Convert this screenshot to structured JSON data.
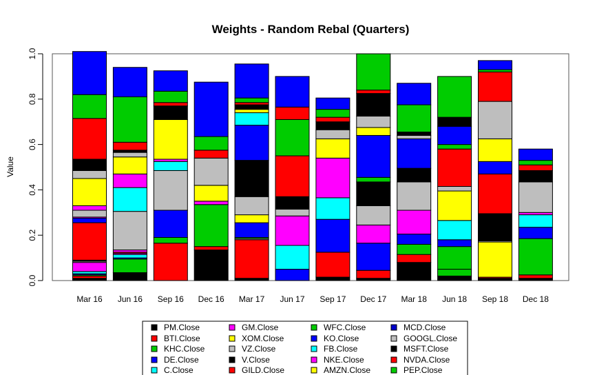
{
  "chart_data": {
    "type": "bar",
    "stacked": true,
    "title": "Weights - Random Rebal (Quarters)",
    "xlabel": "",
    "ylabel": "Value",
    "ylim": [
      0,
      1
    ],
    "yticks": [
      "0.0",
      "0.2",
      "0.4",
      "0.6",
      "0.8",
      "1.0"
    ],
    "grid": false,
    "legend_position": "bottom",
    "categories": [
      "Mar 16",
      "Jun 16",
      "Sep 16",
      "Dec 16",
      "Mar 17",
      "Jun 17",
      "Sep 17",
      "Dec 17",
      "Mar 18",
      "Jun 18",
      "Sep 18",
      "Dec 18"
    ],
    "series": [
      {
        "name": "PM.Close",
        "color": "#000000",
        "values": [
          0.01,
          0.035,
          0.0,
          0.135,
          0.01,
          0.0,
          0.015,
          0.01,
          0.08,
          0.02,
          0.01,
          0.01
        ]
      },
      {
        "name": "BTI.Close",
        "color": "#FF0000",
        "values": [
          0.01,
          0.0,
          0.165,
          0.015,
          0.17,
          0.0,
          0.11,
          0.035,
          0.035,
          0.0,
          0.005,
          0.015
        ]
      },
      {
        "name": "KHC.Close",
        "color": "#00CC00",
        "values": [
          0.005,
          0.06,
          0.0,
          0.0,
          0.0,
          0.0,
          0.0,
          0.0,
          0.0,
          0.03,
          0.0,
          0.0
        ]
      },
      {
        "name": "DE.Close",
        "color": "#0000FF",
        "values": [
          0.005,
          0.005,
          0.0,
          0.0,
          0.0,
          0.05,
          0.0,
          0.12,
          0.0,
          0.0,
          0.0,
          0.0
        ]
      },
      {
        "name": "C.Close",
        "color": "#00FFFF",
        "values": [
          0.01,
          0.015,
          0.0,
          0.0,
          0.0,
          0.105,
          0.0,
          0.0,
          0.0,
          0.0,
          0.0,
          0.0
        ]
      },
      {
        "name": "GM.Close",
        "color": "#FF00FF",
        "values": [
          0.04,
          0.005,
          0.0,
          0.0,
          0.0,
          0.0,
          0.0,
          0.0,
          0.0,
          0.0,
          0.0,
          0.0
        ]
      },
      {
        "name": "XOM.Close",
        "color": "#FFFF00",
        "values": [
          0.0,
          0.0,
          0.0,
          0.0,
          0.0,
          0.0,
          0.0,
          0.0,
          0.0,
          0.0,
          0.155,
          0.0
        ]
      },
      {
        "name": "VZ.Close",
        "color": "#BEBEBE",
        "values": [
          0.005,
          0.0,
          0.0,
          0.0,
          0.005,
          0.0,
          0.0,
          0.0,
          0.0,
          0.0,
          0.005,
          0.0
        ]
      },
      {
        "name": "V.Close",
        "color": "#000000",
        "values": [
          0.005,
          0.0,
          0.0,
          0.0,
          0.0,
          0.0,
          0.0,
          0.0,
          0.0,
          0.0,
          0.01,
          0.0
        ]
      },
      {
        "name": "GILD.Close",
        "color": "#FF0000",
        "values": [
          0.165,
          0.005,
          0.0,
          0.0,
          0.0,
          0.0,
          0.0,
          0.0,
          0.0,
          0.0,
          0.0,
          0.0
        ]
      },
      {
        "name": "WFC.Close",
        "color": "#00CC00",
        "values": [
          0.0,
          0.0,
          0.025,
          0.185,
          0.005,
          0.0,
          0.0,
          0.0,
          0.045,
          0.1,
          0.0,
          0.16
        ]
      },
      {
        "name": "KO.Close",
        "color": "#0000FF",
        "values": [
          0.02,
          0.0,
          0.12,
          0.0,
          0.065,
          0.0,
          0.145,
          0.0,
          0.045,
          0.03,
          0.0,
          0.05
        ]
      },
      {
        "name": "FB.Close",
        "color": "#00FFFF",
        "values": [
          0.0,
          0.0,
          0.0,
          0.0,
          0.0,
          0.0,
          0.0,
          0.0,
          0.0,
          0.085,
          0.0,
          0.055
        ]
      },
      {
        "name": "NKE.Close",
        "color": "#FF00FF",
        "values": [
          0.005,
          0.01,
          0.0,
          0.0,
          0.0,
          0.13,
          0.0,
          0.08,
          0.105,
          0.0,
          0.0,
          0.01
        ]
      },
      {
        "name": "AMZN.Close",
        "color": "#FFFF00",
        "values": [
          0.0,
          0.0,
          0.0,
          0.0,
          0.035,
          0.0,
          0.0,
          0.0,
          0.0,
          0.13,
          0.0,
          0.0
        ]
      },
      {
        "name": "MCD.Close",
        "color": "#0000CC",
        "values": [
          0.0,
          0.0,
          0.0,
          0.0,
          0.0,
          0.0,
          0.0,
          0.0,
          0.0,
          0.0,
          0.0,
          0.0
        ]
      },
      {
        "name": "GOOGL.Close",
        "color": "#BEBEBE",
        "values": [
          0.03,
          0.17,
          0.175,
          0.0,
          0.08,
          0.03,
          0.0,
          0.085,
          0.125,
          0.02,
          0.0,
          0.135
        ]
      },
      {
        "name": "MSFT.Close",
        "color": "#000000",
        "values": [
          0.0,
          0.0,
          0.0,
          0.0,
          0.16,
          0.055,
          0.0,
          0.105,
          0.06,
          0.0,
          0.11,
          0.05
        ]
      },
      {
        "name": "NVDA.Close",
        "color": "#FF0000",
        "values": [
          0.0,
          0.0,
          0.0,
          0.0,
          0.0,
          0.18,
          0.0,
          0.0,
          0.0,
          0.165,
          0.175,
          0.025
        ]
      },
      {
        "name": "PEP.Close",
        "color": "#00CC00",
        "values": [
          0.0,
          0.0,
          0.0,
          0.0,
          0.0,
          0.16,
          0.0,
          0.02,
          0.0,
          0.02,
          0.0,
          0.0
        ]
      },
      {
        "name": "MCD.Close",
        "color": "#0000FF",
        "values": [
          0.0,
          0.0,
          0.0,
          0.0,
          0.155,
          0.0,
          0.0,
          0.185,
          0.13,
          0.08,
          0.055,
          0.0
        ]
      },
      {
        "name": "PM.Close",
        "color": "#00FFFF",
        "values": [
          0.0,
          0.105,
          0.04,
          0.0,
          0.055,
          0.0,
          0.095,
          0.0,
          0.0,
          0.0,
          0.0,
          0.0
        ]
      },
      {
        "name": "BTI.Close",
        "color": "#FF00FF",
        "values": [
          0.02,
          0.06,
          0.01,
          0.015,
          0.0,
          0.0,
          0.175,
          0.0,
          0.0,
          0.0,
          0.0,
          0.0
        ]
      },
      {
        "name": "KHC.Close",
        "color": "#FFFF00",
        "values": [
          0.12,
          0.075,
          0.175,
          0.07,
          0.015,
          0.0,
          0.085,
          0.035,
          0.0,
          0.0,
          0.1,
          0.0
        ]
      },
      {
        "name": "DE.Close",
        "color": "#BEBEBE",
        "values": [
          0.035,
          0.02,
          0.0,
          0.12,
          0.0,
          0.0,
          0.04,
          0.05,
          0.015,
          0.0,
          0.165,
          0.0
        ]
      },
      {
        "name": "C.Close",
        "color": "#000000",
        "values": [
          0.05,
          0.01,
          0.06,
          0.0,
          0.02,
          0.0,
          0.035,
          0.1,
          0.015,
          0.04,
          0.0,
          0.0
        ]
      },
      {
        "name": "GM.Close",
        "color": "#FF0000",
        "values": [
          0.18,
          0.035,
          0.015,
          0.035,
          0.01,
          0.055,
          0.02,
          0.015,
          0.0,
          0.0,
          0.13,
          0.0
        ]
      },
      {
        "name": "XOM.Close",
        "color": "#00CC00",
        "values": [
          0.105,
          0.2,
          0.05,
          0.06,
          0.02,
          0.0,
          0.035,
          0.16,
          0.12,
          0.18,
          0.01,
          0.02
        ]
      },
      {
        "name": "VZ.Close",
        "color": "#0000FF",
        "values": [
          0.19,
          0.13,
          0.09,
          0.24,
          0.15,
          0.135,
          0.05,
          0.0,
          0.095,
          0.0,
          0.04,
          0.05
        ]
      }
    ]
  }
}
